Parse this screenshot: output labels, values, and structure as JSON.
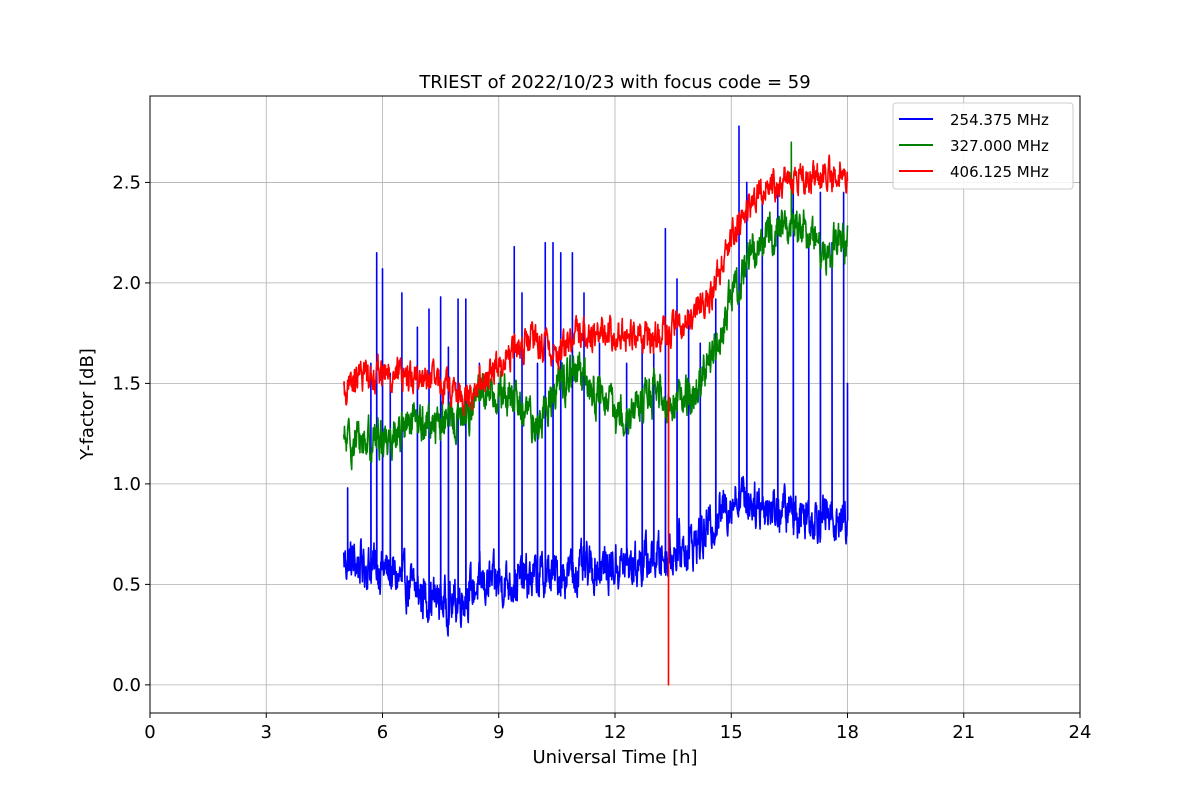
{
  "chart_data": {
    "type": "line",
    "title": "TRIEST of 2022/10/23 with focus code = 59",
    "xlabel": "Universal Time [h]",
    "ylabel": "Y-factor [dB]",
    "xlim": [
      0,
      24
    ],
    "ylim": [
      -0.14,
      2.93
    ],
    "xticks": [
      0,
      3,
      6,
      9,
      12,
      15,
      18,
      21,
      24
    ],
    "yticks": [
      0.0,
      0.5,
      1.0,
      1.5,
      2.0,
      2.5
    ],
    "xtick_labels": [
      "0",
      "3",
      "6",
      "9",
      "12",
      "15",
      "18",
      "21",
      "24"
    ],
    "ytick_labels": [
      "0.0",
      "0.5",
      "1.0",
      "1.5",
      "2.0",
      "2.5"
    ],
    "grid": true,
    "legend_position": "top-right",
    "series": [
      {
        "name": "254.375 MHz",
        "color": "#0000ff",
        "x_range": [
          5.0,
          18.0
        ],
        "baseline": [
          [
            5.0,
            0.62
          ],
          [
            6.0,
            0.58
          ],
          [
            7.0,
            0.45
          ],
          [
            7.8,
            0.4
          ],
          [
            8.5,
            0.5
          ],
          [
            9.5,
            0.52
          ],
          [
            10.5,
            0.55
          ],
          [
            11.5,
            0.58
          ],
          [
            12.5,
            0.6
          ],
          [
            13.5,
            0.66
          ],
          [
            14.2,
            0.72
          ],
          [
            14.7,
            0.85
          ],
          [
            15.2,
            0.95
          ],
          [
            16.0,
            0.88
          ],
          [
            17.0,
            0.85
          ],
          [
            18.0,
            0.82
          ]
        ],
        "noise": 0.09,
        "spikes": [
          [
            5.1,
            0.98
          ],
          [
            5.7,
            1.6
          ],
          [
            5.85,
            2.15
          ],
          [
            6.0,
            2.07
          ],
          [
            6.2,
            1.55
          ],
          [
            6.5,
            1.95
          ],
          [
            6.9,
            1.78
          ],
          [
            7.2,
            1.87
          ],
          [
            7.5,
            1.93
          ],
          [
            7.7,
            1.68
          ],
          [
            7.95,
            1.92
          ],
          [
            8.15,
            1.92
          ],
          [
            8.5,
            1.6
          ],
          [
            9.0,
            1.5
          ],
          [
            9.4,
            2.18
          ],
          [
            9.6,
            1.95
          ],
          [
            10.0,
            1.6
          ],
          [
            10.2,
            2.2
          ],
          [
            10.4,
            2.2
          ],
          [
            10.6,
            2.15
          ],
          [
            10.9,
            2.15
          ],
          [
            11.2,
            1.95
          ],
          [
            11.6,
            1.7
          ],
          [
            12.3,
            1.6
          ],
          [
            12.7,
            1.7
          ],
          [
            13.0,
            1.65
          ],
          [
            13.3,
            2.27
          ],
          [
            13.6,
            2.02
          ],
          [
            13.9,
            1.86
          ],
          [
            14.2,
            1.7
          ],
          [
            14.6,
            1.92
          ],
          [
            15.2,
            2.78
          ],
          [
            15.4,
            2.5
          ],
          [
            15.8,
            2.4
          ],
          [
            16.2,
            2.45
          ],
          [
            16.6,
            2.5
          ],
          [
            17.0,
            2.2
          ],
          [
            17.3,
            2.45
          ],
          [
            17.6,
            2.2
          ],
          [
            17.9,
            2.45
          ],
          [
            18.0,
            1.5
          ]
        ]
      },
      {
        "name": "327.000 MHz",
        "color": "#008000",
        "x_range": [
          5.0,
          18.0
        ],
        "baseline": [
          [
            5.0,
            1.2
          ],
          [
            6.0,
            1.23
          ],
          [
            7.0,
            1.3
          ],
          [
            8.0,
            1.32
          ],
          [
            8.7,
            1.48
          ],
          [
            9.5,
            1.4
          ],
          [
            10.0,
            1.28
          ],
          [
            10.5,
            1.5
          ],
          [
            11.0,
            1.55
          ],
          [
            11.5,
            1.45
          ],
          [
            12.0,
            1.35
          ],
          [
            12.5,
            1.38
          ],
          [
            13.0,
            1.45
          ],
          [
            13.5,
            1.4
          ],
          [
            14.0,
            1.45
          ],
          [
            14.6,
            1.65
          ],
          [
            15.0,
            1.92
          ],
          [
            15.5,
            2.15
          ],
          [
            16.0,
            2.25
          ],
          [
            16.5,
            2.3
          ],
          [
            17.0,
            2.25
          ],
          [
            17.5,
            2.15
          ],
          [
            18.0,
            2.2
          ]
        ],
        "noise": 0.08,
        "spikes": [
          [
            16.55,
            2.7
          ]
        ]
      },
      {
        "name": "406.125 MHz",
        "color": "#ff0000",
        "x_range": [
          5.0,
          18.0
        ],
        "baseline": [
          [
            5.0,
            1.45
          ],
          [
            5.5,
            1.55
          ],
          [
            6.5,
            1.55
          ],
          [
            7.5,
            1.5
          ],
          [
            8.2,
            1.42
          ],
          [
            9.0,
            1.6
          ],
          [
            9.8,
            1.72
          ],
          [
            10.5,
            1.65
          ],
          [
            11.0,
            1.75
          ],
          [
            12.0,
            1.75
          ],
          [
            13.0,
            1.73
          ],
          [
            13.8,
            1.8
          ],
          [
            14.5,
            1.95
          ],
          [
            15.0,
            2.25
          ],
          [
            15.5,
            2.4
          ],
          [
            16.0,
            2.5
          ],
          [
            17.0,
            2.52
          ],
          [
            18.0,
            2.55
          ]
        ],
        "noise": 0.06,
        "spikes": [
          [
            13.38,
            0.0
          ]
        ]
      }
    ]
  }
}
